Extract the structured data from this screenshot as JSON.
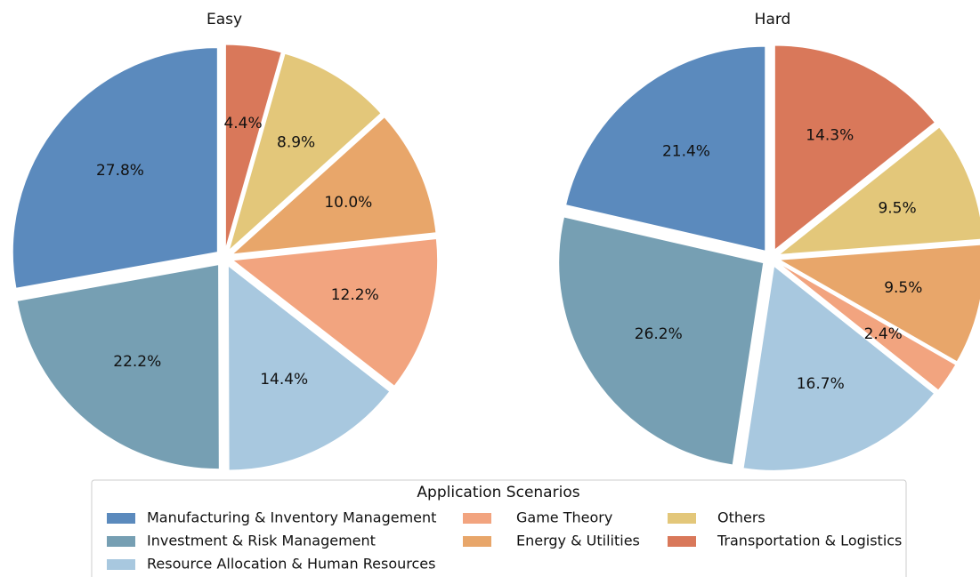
{
  "chart_data": [
    {
      "type": "pie",
      "title": "Easy",
      "legend_title": "Application Scenarios",
      "categories": [
        "Manufacturing & Inventory Management",
        "Investment & Risk Management",
        "Resource Allocation & Human Resources",
        "Game Theory",
        "Energy & Utilities",
        "Others",
        "Transportation & Logistics"
      ],
      "values": [
        27.8,
        22.2,
        14.4,
        12.2,
        10.0,
        8.9,
        4.4
      ],
      "value_labels": [
        "27.8%",
        "22.2%",
        "14.4%",
        "12.2%",
        "10.0%",
        "8.9%",
        "4.4%"
      ],
      "colors": [
        "#5b8abd",
        "#769fb3",
        "#a8c8df",
        "#f2a47f",
        "#e8a66a",
        "#e3c77a",
        "#d9785a"
      ]
    },
    {
      "type": "pie",
      "title": "Hard",
      "categories": [
        "Manufacturing & Inventory Management",
        "Investment & Risk Management",
        "Resource Allocation & Human Resources",
        "Game Theory",
        "Energy & Utilities",
        "Others",
        "Transportation & Logistics"
      ],
      "values": [
        21.4,
        26.2,
        16.7,
        2.4,
        9.5,
        9.5,
        14.3
      ],
      "value_labels": [
        "21.4%",
        "26.2%",
        "16.7%",
        "2.4%",
        "9.5%",
        "9.5%",
        "14.3%"
      ],
      "colors": [
        "#5b8abd",
        "#769fb3",
        "#a8c8df",
        "#f2a47f",
        "#e8a66a",
        "#e3c77a",
        "#d9785a"
      ]
    }
  ]
}
